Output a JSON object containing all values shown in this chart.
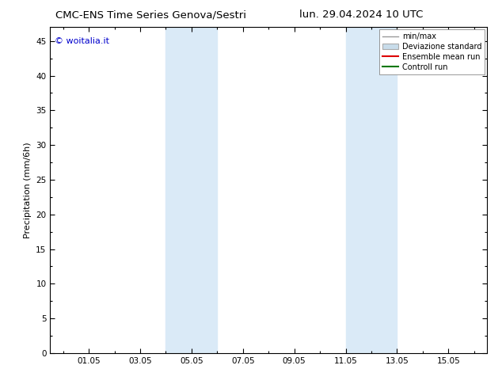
{
  "title_left": "CMC-ENS Time Series Genova/Sestri",
  "title_right": "lun. 29.04.2024 10 UTC",
  "ylabel": "Precipitation (mm/6h)",
  "watermark": "© woitalia.it",
  "watermark_color": "#0000cc",
  "ylim": [
    0,
    47
  ],
  "yticks": [
    0,
    5,
    10,
    15,
    20,
    25,
    30,
    35,
    40,
    45
  ],
  "xtick_labels": [
    "01.05",
    "03.05",
    "05.05",
    "07.05",
    "09.05",
    "11.05",
    "13.05",
    "15.05"
  ],
  "xtick_positions": [
    1.0,
    3.0,
    5.0,
    7.0,
    9.0,
    11.0,
    13.0,
    15.0
  ],
  "xlim": [
    -0.5,
    16.5
  ],
  "shaded_bands": [
    {
      "xmin": 4.0,
      "xmax": 6.0,
      "color": "#daeaf7"
    },
    {
      "xmin": 11.0,
      "xmax": 13.0,
      "color": "#daeaf7"
    }
  ],
  "legend_items": [
    {
      "label": "min/max",
      "type": "line",
      "color": "#999999",
      "linewidth": 1.0
    },
    {
      "label": "Deviazione standard",
      "type": "fill",
      "color": "#c8dcea",
      "edgecolor": "#aaaaaa"
    },
    {
      "label": "Ensemble mean run",
      "type": "line",
      "color": "#dd0000",
      "linewidth": 1.5
    },
    {
      "label": "Controll run",
      "type": "line",
      "color": "#007700",
      "linewidth": 1.5
    }
  ],
  "background_color": "#ffffff",
  "tick_color": "#000000",
  "title_fontsize": 9.5,
  "label_fontsize": 8,
  "tick_fontsize": 7.5,
  "legend_fontsize": 7,
  "watermark_fontsize": 8
}
